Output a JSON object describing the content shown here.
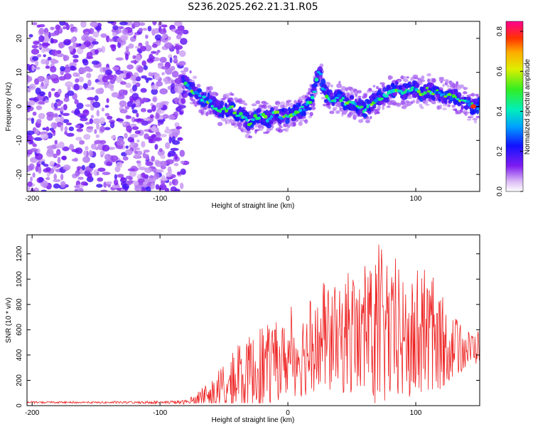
{
  "title": "S236.2025.262.21.31.R05",
  "chart_data": [
    {
      "type": "heatmap",
      "name": "spectrogram",
      "xlabel": "Height of straight line (km)",
      "ylabel": "Frequency (Hz)",
      "xlim": [
        -204,
        150
      ],
      "ylim": [
        -25,
        25
      ],
      "xticks": [
        -200,
        -100,
        0,
        100
      ],
      "yticks": [
        -20,
        -10,
        0,
        10,
        20
      ],
      "noise_region_x": [
        -204,
        -80
      ],
      "ridge": {
        "x": [
          -80,
          -75,
          -70,
          -65,
          -60,
          -55,
          -50,
          -45,
          -40,
          -35,
          -30,
          -25,
          -20,
          -15,
          -10,
          -5,
          0,
          5,
          10,
          15,
          20,
          22,
          25,
          27,
          30,
          35,
          40,
          45,
          50,
          55,
          60,
          65,
          70,
          75,
          80,
          85,
          90,
          95,
          100,
          105,
          110,
          115,
          120,
          125,
          130,
          135,
          140,
          145,
          150
        ],
        "freq": [
          7,
          5,
          3,
          2,
          1,
          -1,
          -1,
          0,
          -2,
          -3,
          -5,
          -3,
          -3,
          -4,
          -2,
          -3,
          -3,
          -2,
          -1,
          0,
          3,
          8,
          11,
          6,
          3,
          2,
          3,
          1,
          1,
          0,
          -1,
          1,
          2,
          3,
          4,
          5,
          4,
          5,
          5,
          4,
          5,
          4,
          4,
          3,
          3,
          2,
          1,
          0,
          0
        ],
        "peak_amplitude": 0.85
      },
      "colorbar": {
        "label": "Normalized spectral amplitude",
        "range": [
          0.0,
          0.85
        ],
        "ticks": [
          0.0,
          0.2,
          0.4,
          0.6,
          0.8
        ]
      }
    },
    {
      "type": "line",
      "name": "snr",
      "xlabel": "Height of straight line (km)",
      "ylabel": "SNR (10 * v/v)",
      "xlim": [
        -204,
        150
      ],
      "ylim": [
        0,
        1350
      ],
      "xticks": [
        -200,
        -100,
        0,
        100
      ],
      "yticks": [
        0,
        200,
        400,
        600,
        800,
        1000,
        1200
      ],
      "color": "#ee2222",
      "envelope": {
        "x": [
          -204,
          -150,
          -100,
          -80,
          -70,
          -60,
          -50,
          -40,
          -30,
          -20,
          -10,
          0,
          10,
          20,
          30,
          40,
          50,
          60,
          70,
          80,
          90,
          100,
          110,
          120,
          130,
          140,
          150
        ],
        "mean": [
          25,
          25,
          25,
          28,
          40,
          80,
          120,
          170,
          230,
          300,
          320,
          370,
          400,
          450,
          480,
          500,
          520,
          510,
          530,
          520,
          500,
          480,
          470,
          480,
          460,
          440,
          470
        ],
        "max": [
          35,
          35,
          38,
          50,
          120,
          200,
          330,
          480,
          620,
          780,
          700,
          780,
          850,
          930,
          1000,
          1050,
          1100,
          1150,
          1330,
          1200,
          1150,
          1140,
          1050,
          950,
          800,
          650,
          650
        ]
      }
    }
  ]
}
